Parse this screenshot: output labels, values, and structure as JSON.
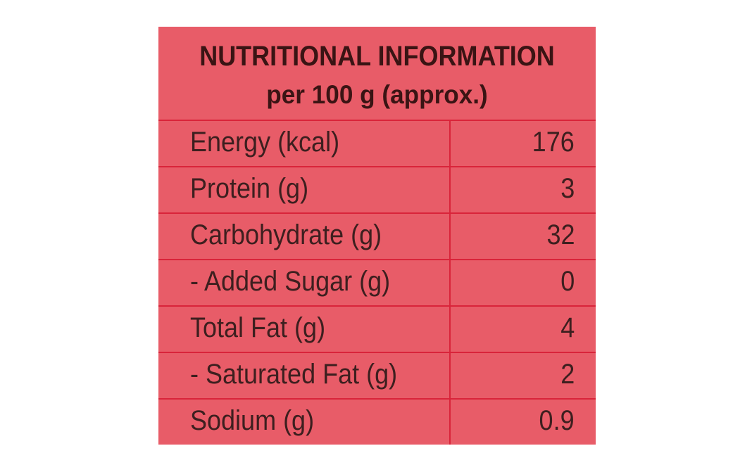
{
  "header": {
    "title": "NUTRITIONAL INFORMATION",
    "subtitle": "per 100 g (approx.)"
  },
  "rows": [
    {
      "label": "Energy (kcal)",
      "value": "176"
    },
    {
      "label": "Protein (g)",
      "value": "3"
    },
    {
      "label": "Carbohydrate (g)",
      "value": "32"
    },
    {
      "label": "- Added Sugar (g)",
      "value": "0"
    },
    {
      "label": "Total Fat (g)",
      "value": "4"
    },
    {
      "label": "- Saturated Fat (g)",
      "value": "2"
    },
    {
      "label": "Sodium (g)",
      "value": "0.9"
    }
  ],
  "colors": {
    "panel_background": "#e85c68",
    "grid_lines": "#d9243a",
    "text": "#3d1f1f"
  }
}
